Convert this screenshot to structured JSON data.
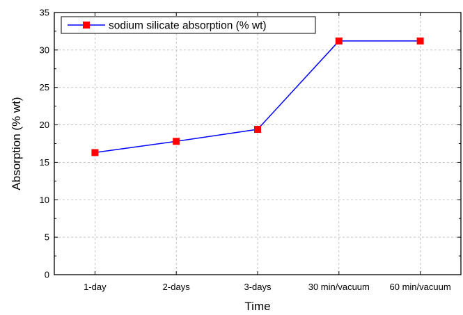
{
  "chart_data": {
    "type": "line",
    "categories": [
      "1-day",
      "2-days",
      "3-days",
      "30 min/vacuum",
      "60 min/vacuum"
    ],
    "series": [
      {
        "name": "sodium silicate absorption (% wt)",
        "values": [
          16.3,
          17.8,
          19.4,
          31.2,
          31.2
        ],
        "line_color": "#0000ff",
        "marker_color": "#ff0000",
        "marker": "square"
      }
    ],
    "title": "",
    "xlabel": "Time",
    "ylabel": "Absorption (% wt)",
    "ylim": [
      0,
      35
    ],
    "yticks": [
      0,
      5,
      10,
      15,
      20,
      25,
      30,
      35
    ],
    "grid": true,
    "legend_position": "top-left"
  }
}
